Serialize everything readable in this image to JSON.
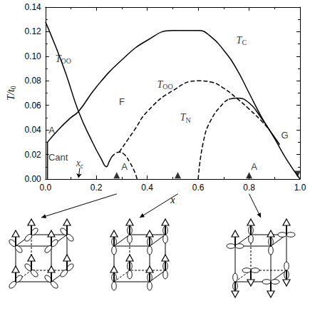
{
  "chart_data": {
    "type": "line",
    "xlabel": {
      "text": "x"
    },
    "ylabel": {
      "text": "T/t",
      "sub": "0"
    },
    "xlim": [
      0,
      1
    ],
    "ylim": [
      0,
      0.14
    ],
    "xticks": [
      {
        "value": 0,
        "label": "0.0"
      },
      {
        "value": 0.2,
        "label": "0.2"
      },
      {
        "value": 0.4,
        "label": "0.4"
      },
      {
        "value": 0.6,
        "label": "0.6"
      },
      {
        "value": 0.8,
        "label": "0.8"
      },
      {
        "value": 1,
        "label": "1.0"
      }
    ],
    "yticks": [
      {
        "value": 0,
        "label": "0.00"
      },
      {
        "value": 0.02,
        "label": "0.02"
      },
      {
        "value": 0.04,
        "label": "0.04"
      },
      {
        "value": 0.06,
        "label": "0.06"
      },
      {
        "value": 0.08,
        "label": "0.08"
      },
      {
        "value": 0.1,
        "label": "0.10"
      },
      {
        "value": 0.12,
        "label": "0.12"
      },
      {
        "value": 0.14,
        "label": "0.14"
      }
    ],
    "grid": false,
    "series": [
      {
        "type": "line",
        "line_style": "solid",
        "color": "#000000",
        "values": [
          [
            0,
            0.128
          ],
          [
            0.04,
            0.108
          ],
          [
            0.08,
            0.086
          ],
          [
            0.13,
            0.055
          ],
          [
            0.18,
            0.032
          ],
          [
            0.22,
            0.016
          ],
          [
            0.24,
            0.01
          ],
          [
            0.25,
            0.014
          ],
          [
            0.26,
            0.018
          ]
        ]
      },
      {
        "type": "line",
        "line_style": "solid",
        "color": "#000000",
        "values": [
          [
            0.008,
            0.03
          ],
          [
            0.05,
            0.04
          ],
          [
            0.1,
            0.05
          ],
          [
            0.13,
            0.055
          ],
          [
            0.2,
            0.075
          ],
          [
            0.3,
            0.097
          ],
          [
            0.4,
            0.113
          ],
          [
            0.5,
            0.121
          ],
          [
            0.6,
            0.121
          ],
          [
            0.65,
            0.116
          ],
          [
            0.7,
            0.105
          ],
          [
            0.75,
            0.09
          ],
          [
            0.8,
            0.07
          ],
          [
            0.85,
            0.05
          ],
          [
            0.9,
            0.033
          ],
          [
            0.95,
            0.015
          ],
          [
            1,
            0
          ]
        ]
      },
      {
        "type": "line",
        "line_style": "solid",
        "color": "#000000",
        "values": [
          [
            0.008,
            0
          ],
          [
            0.008,
            0.03
          ]
        ]
      },
      {
        "type": "line",
        "line_style": "dashed",
        "color": "#000000",
        "values": [
          [
            0.26,
            0.018
          ],
          [
            0.29,
            0.022
          ],
          [
            0.31,
            0.02
          ],
          [
            0.33,
            0.014
          ],
          [
            0.35,
            0.006
          ],
          [
            0.36,
            0
          ]
        ]
      },
      {
        "type": "line",
        "line_style": "dashed",
        "color": "#000000",
        "values": [
          [
            0.29,
            0.022
          ],
          [
            0.35,
            0.04
          ],
          [
            0.4,
            0.055
          ],
          [
            0.5,
            0.072
          ],
          [
            0.6,
            0.08
          ],
          [
            0.65,
            0.079
          ],
          [
            0.7,
            0.074
          ],
          [
            0.75,
            0.066
          ],
          [
            0.8,
            0.057
          ],
          [
            0.85,
            0.047
          ],
          [
            0.88,
            0.04
          ]
        ]
      },
      {
        "type": "line",
        "line_style": "dashed",
        "color": "#000000",
        "values": [
          [
            0.6,
            0
          ],
          [
            0.62,
            0.03
          ],
          [
            0.65,
            0.048
          ],
          [
            0.7,
            0.062
          ],
          [
            0.72,
            0.065
          ]
        ]
      },
      {
        "type": "line",
        "line_style": "solid",
        "color": "#000000",
        "values": [
          [
            0.72,
            0.065
          ],
          [
            0.75,
            0.066
          ],
          [
            0.8,
            0.062
          ],
          [
            0.85,
            0.049
          ],
          [
            0.88,
            0.04
          ],
          [
            0.92,
            0.028
          ]
        ]
      },
      {
        "type": "scatter",
        "marker": "triangle",
        "color": "#000000",
        "values": [
          [
            0.28,
            0.003
          ],
          [
            0.52,
            0.003
          ],
          [
            0.8,
            0.003
          ]
        ]
      },
      {
        "type": "scatter",
        "marker": "triangle-down",
        "color": "#000000",
        "values": [
          [
            0.99,
            0.004
          ]
        ]
      }
    ],
    "annotations": [
      {
        "text": "T",
        "sub": "OO",
        "x": 0.07,
        "y": 0.098
      },
      {
        "text": "T",
        "sub": "C",
        "x": 0.77,
        "y": 0.113
      },
      {
        "text": "T",
        "sub": "OO",
        "x": 0.47,
        "y": 0.077
      },
      {
        "text": "T",
        "sub": "N",
        "x": 0.55,
        "y": 0.05
      },
      {
        "text": "F",
        "x": 0.3,
        "y": 0.063
      },
      {
        "text": "A",
        "x": 0.025,
        "y": 0.04
      },
      {
        "text": "Cant",
        "x": 0.05,
        "y": 0.018
      },
      {
        "text": "x",
        "sub": "c",
        "x": 0.135,
        "y": 0.013,
        "arrow_to": [
          0.13,
          0.001
        ]
      },
      {
        "text": "A",
        "x": 0.31,
        "y": 0.01
      },
      {
        "text": "A",
        "x": 0.82,
        "y": 0.01
      },
      {
        "text": "G",
        "x": 0.94,
        "y": 0.036
      }
    ]
  }
}
